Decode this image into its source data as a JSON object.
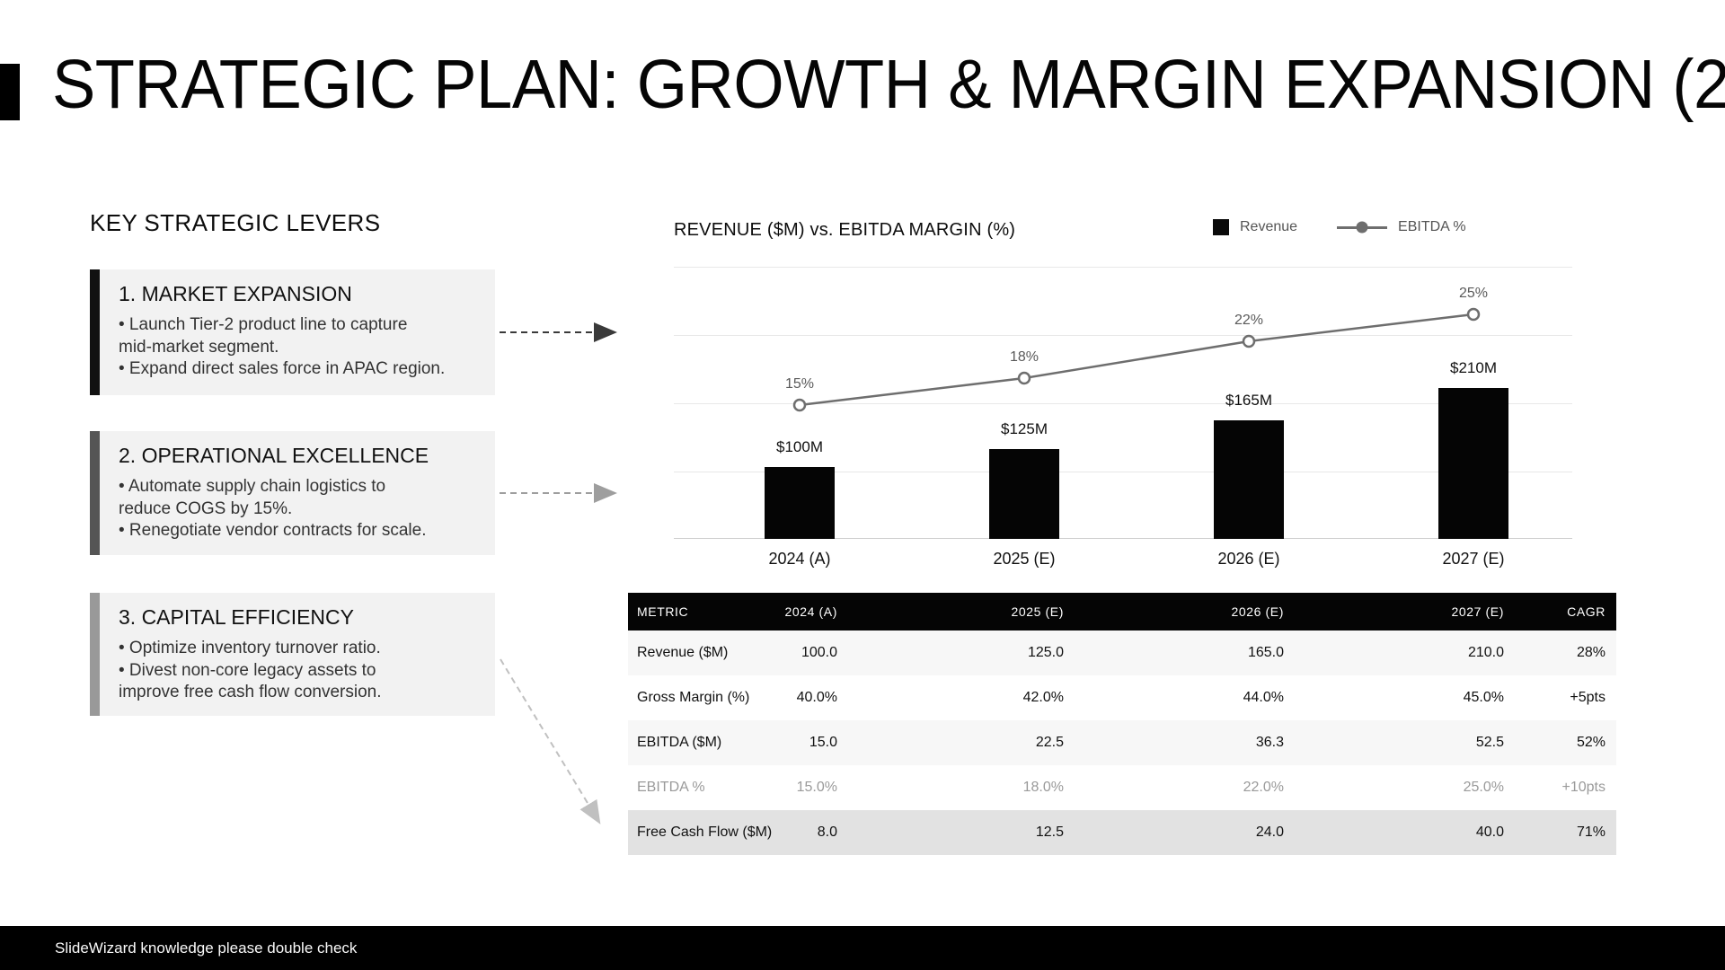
{
  "slide": {
    "title": "STRATEGIC PLAN: GROWTH & MARGIN EXPANSION (2",
    "footer_note": "SlideWizard knowledge please double check",
    "accent_color": "#000000",
    "background_color": "#ffffff"
  },
  "levers": {
    "heading": "KEY STRATEGIC LEVERS",
    "items": [
      {
        "title": "1. MARKET EXPANSION",
        "accent_color": "#111111",
        "lines": [
          "• Launch Tier-2 product line to capture",
          "mid-market segment.",
          "• Expand direct sales force in APAC region."
        ]
      },
      {
        "title": "2. OPERATIONAL EXCELLENCE",
        "accent_color": "#555555",
        "lines": [
          "• Automate supply chain logistics to",
          "reduce COGS by 15%.",
          "• Renegotiate vendor contracts for scale."
        ]
      },
      {
        "title": "3. CAPITAL EFFICIENCY",
        "accent_color": "#999999",
        "lines": [
          "• Optimize inventory turnover ratio.",
          "• Divest non-core legacy assets to",
          "improve free cash flow conversion."
        ]
      }
    ]
  },
  "chart": {
    "title": "REVENUE ($M) vs. EBITDA MARGIN (%)",
    "legend": [
      {
        "label": "Revenue",
        "marker": "square",
        "color": "#0a0a0a"
      },
      {
        "label": "EBITDA %",
        "marker": "line-dot",
        "color": "#6e6e6e"
      }
    ]
  },
  "chart_data": {
    "type": "bar",
    "title": "REVENUE ($M) vs. EBITDA MARGIN (%)",
    "categories": [
      "2024 (A)",
      "2025 (E)",
      "2026 (E)",
      "2027 (E)"
    ],
    "series": [
      {
        "name": "Revenue",
        "type": "bar",
        "unit": "$M",
        "values": [
          100,
          125,
          165,
          210
        ],
        "data_labels": [
          "$100M",
          "$125M",
          "$165M",
          "$210M"
        ],
        "color": "#050505"
      },
      {
        "name": "EBITDA %",
        "type": "line",
        "unit": "%",
        "values": [
          15,
          18,
          22,
          25
        ],
        "data_labels": [
          "15%",
          "18%",
          "22%",
          "25%"
        ],
        "color": "#6e6e6e"
      }
    ],
    "legend_position": "top-right",
    "grid": true
  },
  "table": {
    "headers": [
      "METRIC",
      "2024 (A)",
      "2025 (E)",
      "2026 (E)",
      "2027 (E)",
      "CAGR"
    ],
    "rows": [
      {
        "style": "striped",
        "cells": [
          "Revenue ($M)",
          "100.0",
          "125.0",
          "165.0",
          "210.0",
          "28%"
        ]
      },
      {
        "style": "plain",
        "cells": [
          "Gross Margin (%)",
          "40.0%",
          "42.0%",
          "44.0%",
          "45.0%",
          "+5pts"
        ]
      },
      {
        "style": "striped",
        "cells": [
          "EBITDA ($M)",
          "15.0",
          "22.5",
          "36.3",
          "52.5",
          "52%"
        ]
      },
      {
        "style": "muted",
        "cells": [
          "EBITDA %",
          "15.0%",
          "18.0%",
          "22.0%",
          "25.0%",
          "+10pts"
        ]
      },
      {
        "style": "highlight",
        "cells": [
          "Free Cash Flow ($M)",
          "8.0",
          "12.5",
          "24.0",
          "40.0",
          "71%"
        ]
      }
    ]
  }
}
